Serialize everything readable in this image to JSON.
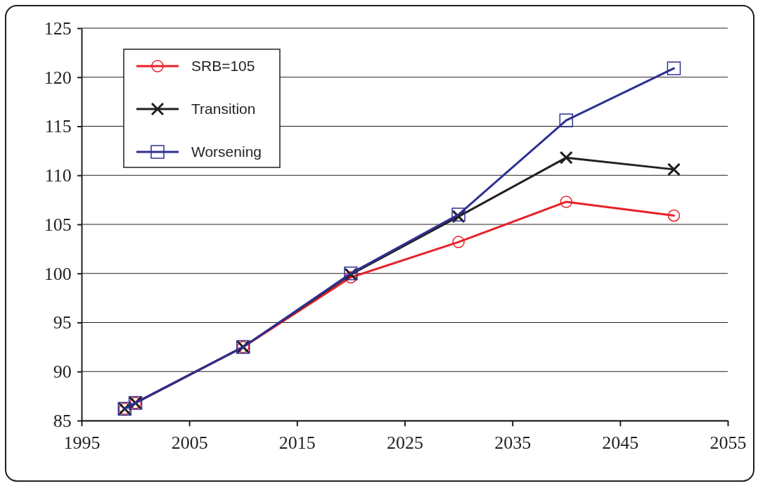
{
  "chart_data": {
    "type": "line",
    "x": [
      1999,
      2000,
      2010,
      2020,
      2030,
      2040,
      2050
    ],
    "series": [
      {
        "name": "SRB=105",
        "color": "#e8202a",
        "marker": "circle",
        "values": [
          86.2,
          86.8,
          92.5,
          99.6,
          103.2,
          107.3,
          105.9
        ]
      },
      {
        "name": "Transition",
        "color": "#231f20",
        "marker": "cross",
        "values": [
          86.2,
          86.8,
          92.5,
          99.9,
          105.8,
          111.8,
          110.6
        ]
      },
      {
        "name": "Worsening",
        "color": "#2e3192",
        "marker": "square",
        "values": [
          86.2,
          86.8,
          92.5,
          100,
          106,
          115.6,
          120.9
        ]
      }
    ],
    "xlim": [
      1995,
      2055
    ],
    "xticks": [
      1995,
      2005,
      2015,
      2025,
      2035,
      2045,
      2055
    ],
    "ylim": [
      85,
      125
    ],
    "yticks": [
      85,
      90,
      95,
      100,
      105,
      110,
      115,
      120,
      125
    ],
    "grid": "y",
    "legend": "top left"
  }
}
